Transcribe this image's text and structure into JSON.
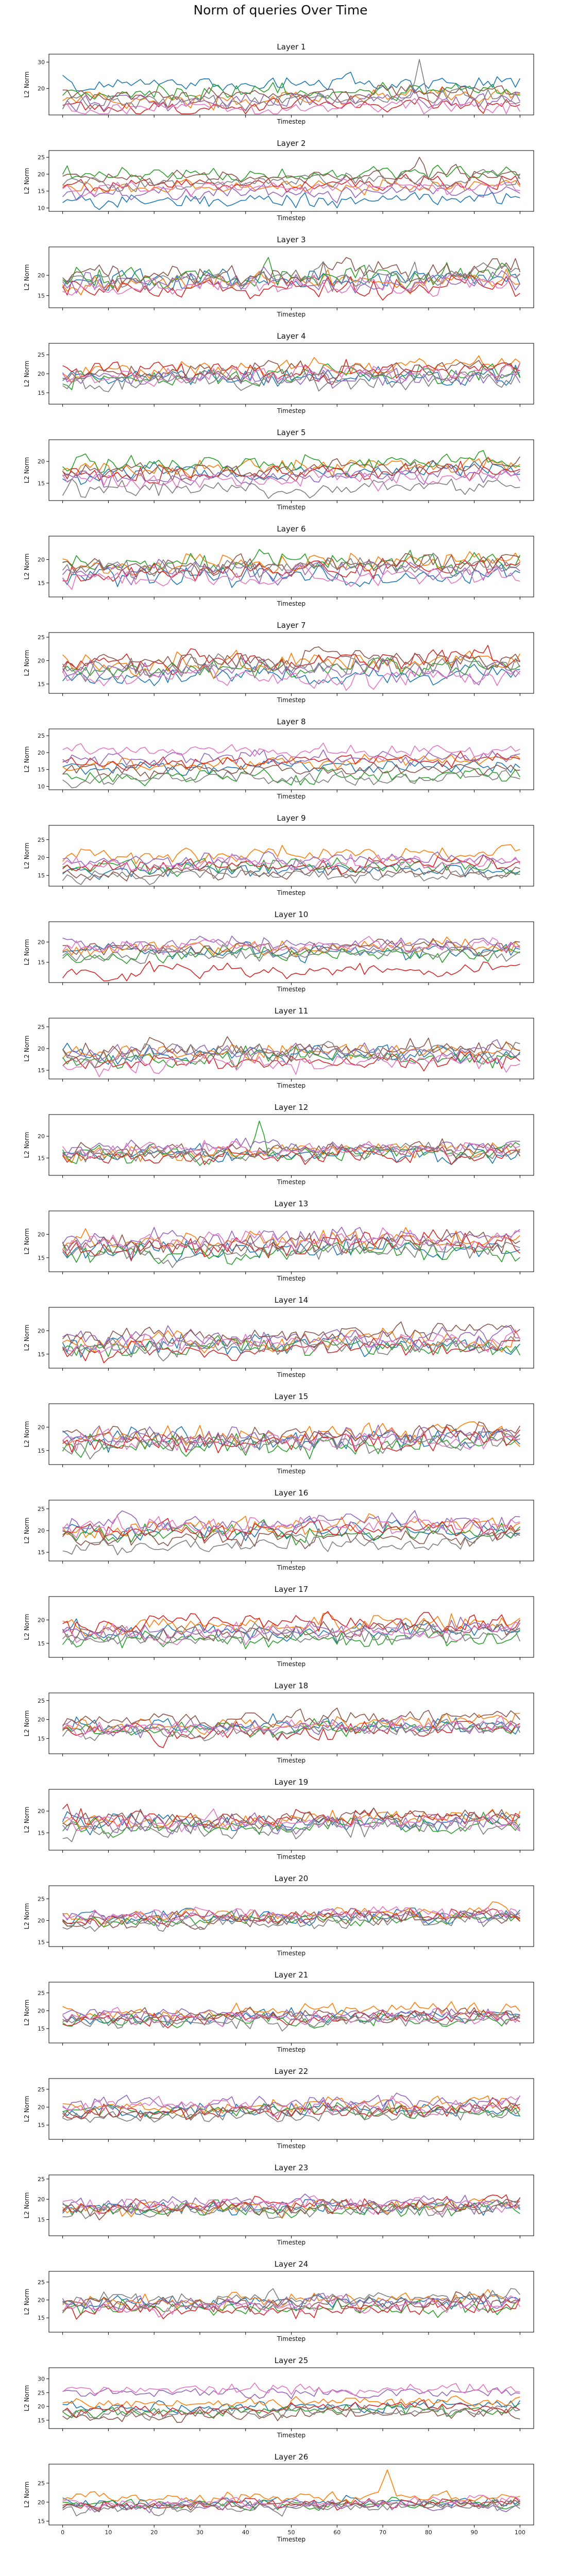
{
  "figure": {
    "title": "Norm of queries Over Time",
    "xlabel": "Timestep",
    "ylabel": "L2 Norm",
    "colors": [
      "#1f77b4",
      "#ff7f0e",
      "#2ca02c",
      "#d62728",
      "#9467bd",
      "#8c564b",
      "#e377c2",
      "#7f7f7f"
    ]
  },
  "chart_data": {
    "type": "line",
    "x": {
      "start": 0,
      "end": 100,
      "step": 1
    },
    "xlim": [
      -3,
      103
    ],
    "xticks": [
      0,
      10,
      20,
      30,
      40,
      50,
      60,
      70,
      80,
      90,
      100
    ],
    "series_count": 8,
    "panels": [
      {
        "title": "Layer 1",
        "ylim": [
          10,
          33
        ],
        "yticks": [
          20,
          30
        ],
        "baselines": [
          22,
          16.5,
          19,
          13.5,
          15.5,
          18,
          12.5,
          15.5
        ],
        "noise": 2.2,
        "spike": {
          "series": 7,
          "x": 78,
          "y": 31
        }
      },
      {
        "title": "Layer 2",
        "ylim": [
          9,
          27
        ],
        "yticks": [
          10,
          15,
          20,
          25
        ],
        "baselines": [
          12.5,
          16.5,
          20,
          17,
          14.5,
          19.5,
          16,
          18
        ],
        "noise": 1.5,
        "spike": {
          "series": 5,
          "x": 78,
          "y": 25
        }
      },
      {
        "title": "Layer 3",
        "ylim": [
          12,
          27
        ],
        "yticks": [
          15,
          20
        ],
        "baselines": [
          19,
          18.5,
          20,
          17,
          18.5,
          20.5,
          17.5,
          19.5
        ],
        "noise": 1.8
      },
      {
        "title": "Layer 4",
        "ylim": [
          12,
          28
        ],
        "yticks": [
          15,
          20,
          25
        ],
        "baselines": [
          19,
          22,
          19.5,
          20.5,
          19,
          21,
          20,
          18
        ],
        "noise": 1.8
      },
      {
        "title": "Layer 5",
        "ylim": [
          11,
          25
        ],
        "yticks": [
          15,
          20
        ],
        "baselines": [
          17.5,
          18.5,
          19.5,
          17.5,
          16.5,
          18.5,
          16,
          14
        ],
        "noise": 1.4
      },
      {
        "title": "Layer 6",
        "ylim": [
          12,
          25
        ],
        "yticks": [
          15,
          20
        ],
        "baselines": [
          16.5,
          19.5,
          19,
          18,
          17.5,
          19,
          16,
          18.5
        ],
        "noise": 1.5
      },
      {
        "title": "Layer 7",
        "ylim": [
          13,
          26
        ],
        "yticks": [
          15,
          20,
          25
        ],
        "baselines": [
          17,
          19.5,
          18.5,
          20,
          18,
          20,
          16.5,
          19
        ],
        "noise": 1.5
      },
      {
        "title": "Layer 8",
        "ylim": [
          9,
          27
        ],
        "yticks": [
          10,
          15,
          20,
          25
        ],
        "baselines": [
          16,
          17,
          13,
          17.5,
          18.5,
          15,
          20.5,
          12.5
        ],
        "noise": 1.5
      },
      {
        "title": "Layer 9",
        "ylim": [
          12,
          29
        ],
        "yticks": [
          15,
          20,
          25
        ],
        "baselines": [
          16.5,
          21,
          17.5,
          18,
          19,
          16,
          18.5,
          15
        ],
        "noise": 1.5
      },
      {
        "title": "Layer 10",
        "ylim": [
          10,
          25
        ],
        "yticks": [
          15,
          20
        ],
        "baselines": [
          17.5,
          18.5,
          17,
          13,
          19.5,
          18.5,
          19,
          17
        ],
        "noise": 1.3
      },
      {
        "title": "Layer 11",
        "ylim": [
          13,
          27
        ],
        "yticks": [
          15,
          20,
          25
        ],
        "baselines": [
          18.5,
          19.5,
          18,
          17,
          19,
          20,
          16.5,
          19
        ],
        "noise": 1.5
      },
      {
        "title": "Layer 12",
        "ylim": [
          11,
          25
        ],
        "yticks": [
          15,
          20
        ],
        "baselines": [
          16,
          16.5,
          16,
          15.5,
          17.5,
          17,
          17,
          16.5
        ],
        "noise": 1.3,
        "spike": {
          "series": 2,
          "x": 43,
          "y": 23.5
        }
      },
      {
        "title": "Layer 13",
        "ylim": [
          12,
          25
        ],
        "yticks": [
          15,
          20
        ],
        "baselines": [
          17,
          18.5,
          16,
          17.5,
          19,
          18,
          18.5,
          16.5
        ],
        "noise": 1.6
      },
      {
        "title": "Layer 14",
        "ylim": [
          12,
          25
        ],
        "yticks": [
          15,
          20
        ],
        "baselines": [
          17,
          18,
          16.5,
          16,
          18.5,
          19,
          17.5,
          16.5
        ],
        "noise": 1.5
      },
      {
        "title": "Layer 15",
        "ylim": [
          12,
          25
        ],
        "yticks": [
          15,
          20
        ],
        "baselines": [
          17.5,
          18.5,
          16.5,
          17,
          18,
          18.5,
          17,
          16.5
        ],
        "noise": 1.6
      },
      {
        "title": "Layer 16",
        "ylim": [
          13,
          27
        ],
        "yticks": [
          15,
          20,
          25
        ],
        "baselines": [
          20,
          21,
          19.5,
          20,
          21.5,
          18.5,
          21,
          17
        ],
        "noise": 1.5
      },
      {
        "title": "Layer 17",
        "ylim": [
          12,
          25
        ],
        "yticks": [
          15,
          20
        ],
        "baselines": [
          17.5,
          19,
          16,
          19.5,
          18,
          17.5,
          17,
          16.5
        ],
        "noise": 1.4
      },
      {
        "title": "Layer 18",
        "ylim": [
          11,
          27
        ],
        "yticks": [
          15,
          20,
          25
        ],
        "baselines": [
          18.5,
          19,
          17.5,
          17,
          18,
          20.5,
          18,
          17
        ],
        "noise": 1.5
      },
      {
        "title": "Layer 19",
        "ylim": [
          11,
          25
        ],
        "yticks": [
          15,
          20
        ],
        "baselines": [
          17.5,
          18,
          16.5,
          18.5,
          17,
          18.5,
          17.5,
          16
        ],
        "noise": 1.5
      },
      {
        "title": "Layer 20",
        "ylim": [
          14,
          28
        ],
        "yticks": [
          15,
          20,
          25
        ],
        "baselines": [
          21,
          21.5,
          20,
          21,
          21,
          20,
          21.5,
          19.5
        ],
        "noise": 1.2
      },
      {
        "title": "Layer 21",
        "ylim": [
          11,
          28
        ],
        "yticks": [
          15,
          20,
          25
        ],
        "baselines": [
          18.5,
          20,
          17.5,
          18,
          19,
          18.5,
          18,
          17
        ],
        "noise": 1.4
      },
      {
        "title": "Layer 22",
        "ylim": [
          11,
          28
        ],
        "yticks": [
          15,
          20,
          25
        ],
        "baselines": [
          19.5,
          20.5,
          18.5,
          19,
          21,
          19,
          20.5,
          18
        ],
        "noise": 1.5
      },
      {
        "title": "Layer 23",
        "ylim": [
          11,
          26
        ],
        "yticks": [
          15,
          20,
          25
        ],
        "baselines": [
          18,
          18.5,
          17.5,
          18.5,
          19,
          18,
          18.5,
          17.5
        ],
        "noise": 1.4
      },
      {
        "title": "Layer 24",
        "ylim": [
          11,
          28
        ],
        "yticks": [
          15,
          20,
          25
        ],
        "baselines": [
          19.5,
          20,
          18,
          17.5,
          19,
          19,
          18.5,
          20.5
        ],
        "noise": 1.6
      },
      {
        "title": "Layer 25",
        "ylim": [
          12,
          34
        ],
        "yticks": [
          15,
          20,
          25,
          30
        ],
        "baselines": [
          20,
          21.5,
          18.5,
          19.5,
          25,
          17,
          26,
          18
        ],
        "noise": 1.5
      },
      {
        "title": "Layer 26",
        "ylim": [
          14,
          30
        ],
        "yticks": [
          15,
          20,
          25
        ],
        "baselines": [
          20,
          21.5,
          19.5,
          19.5,
          19,
          19.5,
          20,
          18.5
        ],
        "noise": 1.0,
        "spike": {
          "series": 1,
          "x": 71,
          "y": 28.5
        }
      }
    ]
  }
}
